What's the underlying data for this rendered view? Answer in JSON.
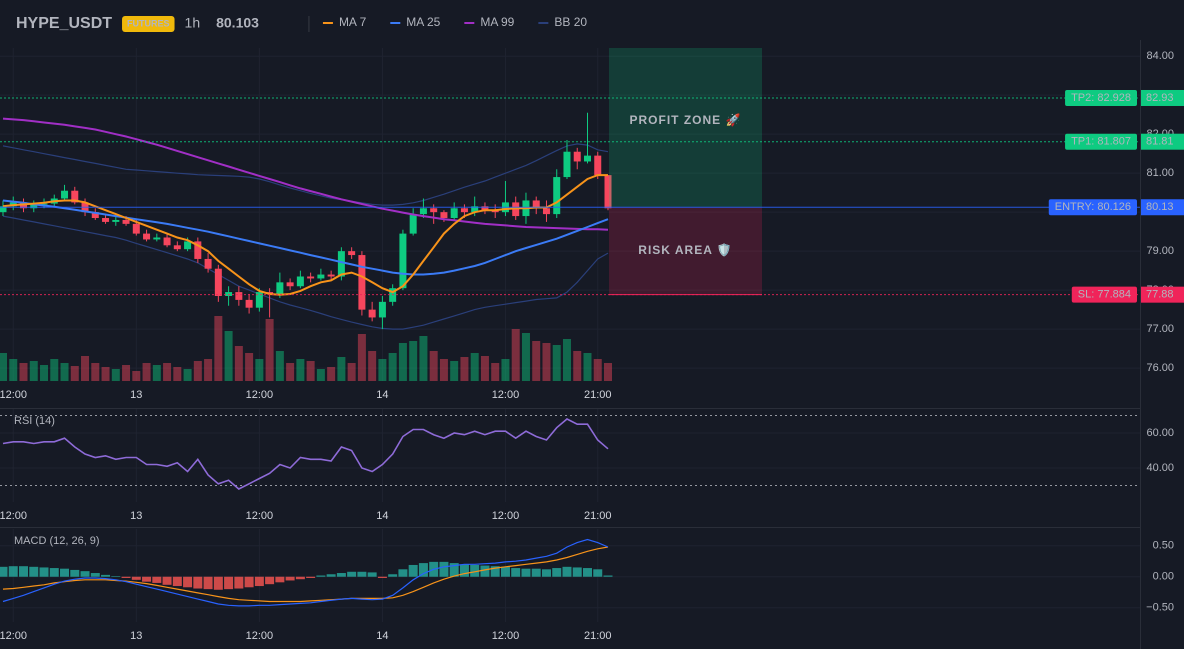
{
  "chart_data": [
    {
      "type": "candlestick",
      "title": "HYPE_USDT",
      "badge": "FUTURES",
      "interval": "1h",
      "last_price": 80.103,
      "last_price_color": "#f6465d",
      "categories": [
        null,
        "12:00",
        null,
        null,
        null,
        null,
        null,
        null,
        null,
        null,
        null,
        null,
        null,
        "13",
        null,
        null,
        null,
        null,
        null,
        null,
        null,
        null,
        null,
        null,
        null,
        "12:00",
        null,
        null,
        null,
        null,
        null,
        null,
        null,
        null,
        null,
        null,
        null,
        "14",
        null,
        null,
        null,
        null,
        null,
        null,
        null,
        null,
        null,
        null,
        null,
        "12:00",
        null,
        null,
        null,
        null,
        null,
        null,
        null,
        null,
        "21:00",
        null
      ],
      "open": [
        80.0,
        80.15,
        80.25,
        80.1,
        80.2,
        80.22,
        80.35,
        80.55,
        80.25,
        80.0,
        79.85,
        79.75,
        79.8,
        79.7,
        79.45,
        79.3,
        79.35,
        79.15,
        79.05,
        79.25,
        78.8,
        78.55,
        77.85,
        77.95,
        77.75,
        77.55,
        77.95,
        77.9,
        78.2,
        78.1,
        78.35,
        78.3,
        78.4,
        78.35,
        79.0,
        78.9,
        77.5,
        77.3,
        77.7,
        78.05,
        79.45,
        79.95,
        80.1,
        80.0,
        79.85,
        80.1,
        80.0,
        80.15,
        80.05,
        80.0,
        80.25,
        79.9,
        80.3,
        80.1,
        79.95,
        80.9,
        81.55,
        81.3,
        81.45,
        80.95
      ],
      "high": [
        80.3,
        80.4,
        80.35,
        80.3,
        80.35,
        80.45,
        80.7,
        80.65,
        80.35,
        80.1,
        79.95,
        79.9,
        79.9,
        79.8,
        79.55,
        79.45,
        79.45,
        79.25,
        79.35,
        79.35,
        78.95,
        78.65,
        78.1,
        78.1,
        77.9,
        78.05,
        78.05,
        78.45,
        78.3,
        78.5,
        78.45,
        78.55,
        78.5,
        79.1,
        79.1,
        79.0,
        77.7,
        77.85,
        78.15,
        79.55,
        80.1,
        80.35,
        80.2,
        80.05,
        80.25,
        80.2,
        80.4,
        80.25,
        80.2,
        80.8,
        80.4,
        80.5,
        80.4,
        80.3,
        81.1,
        81.85,
        81.65,
        82.55,
        81.55,
        80.95
      ],
      "low": [
        79.9,
        80.05,
        80.0,
        80.0,
        80.1,
        80.15,
        80.3,
        80.2,
        79.9,
        79.8,
        79.7,
        79.65,
        79.65,
        79.4,
        79.25,
        79.25,
        79.1,
        79.0,
        79.0,
        78.7,
        78.45,
        77.7,
        77.6,
        77.6,
        77.4,
        77.45,
        77.3,
        77.8,
        78.0,
        78.05,
        78.2,
        78.25,
        78.25,
        78.25,
        78.8,
        77.35,
        77.2,
        77.0,
        77.6,
        78.0,
        79.4,
        79.85,
        79.7,
        79.75,
        79.8,
        79.85,
        79.9,
        79.95,
        79.85,
        79.9,
        79.8,
        79.7,
        79.95,
        79.75,
        79.85,
        80.85,
        81.1,
        81.25,
        80.85,
        80.05
      ],
      "close": [
        80.15,
        80.25,
        80.1,
        80.2,
        80.22,
        80.35,
        80.55,
        80.25,
        80.0,
        79.85,
        79.75,
        79.8,
        79.7,
        79.45,
        79.3,
        79.35,
        79.15,
        79.05,
        79.25,
        78.8,
        78.55,
        77.85,
        77.95,
        77.75,
        77.55,
        77.95,
        77.9,
        78.2,
        78.1,
        78.35,
        78.3,
        78.4,
        78.35,
        79.0,
        78.9,
        77.5,
        77.3,
        77.7,
        78.05,
        79.45,
        79.95,
        80.1,
        80.0,
        79.85,
        80.1,
        80.0,
        80.15,
        80.05,
        80.0,
        80.25,
        79.9,
        80.3,
        80.1,
        79.95,
        80.9,
        81.55,
        81.3,
        81.45,
        80.95,
        80.1
      ],
      "volume": [
        28,
        22,
        18,
        20,
        16,
        22,
        18,
        15,
        25,
        18,
        14,
        12,
        16,
        10,
        18,
        16,
        18,
        14,
        12,
        20,
        22,
        65,
        50,
        35,
        28,
        22,
        62,
        30,
        18,
        22,
        20,
        12,
        14,
        24,
        18,
        47,
        30,
        22,
        28,
        38,
        40,
        45,
        30,
        22,
        20,
        24,
        28,
        25,
        18,
        22,
        52,
        48,
        40,
        38,
        36,
        42,
        30,
        28,
        22,
        18
      ],
      "volume_ylim": [
        0,
        100
      ],
      "up_color": "#0ecb81",
      "down_color": "#f6465d",
      "series": [
        {
          "name": "MA 7",
          "color": "#f7931a",
          "values": [
            80.15,
            80.18,
            80.2,
            80.22,
            80.24,
            80.28,
            80.3,
            80.3,
            80.25,
            80.15,
            80.05,
            79.95,
            79.85,
            79.75,
            79.65,
            79.55,
            79.45,
            79.35,
            79.28,
            79.15,
            79.0,
            78.75,
            78.55,
            78.35,
            78.15,
            77.98,
            77.9,
            77.88,
            77.9,
            77.98,
            78.1,
            78.2,
            78.25,
            78.4,
            78.45,
            78.35,
            78.2,
            78.05,
            77.95,
            78.1,
            78.4,
            78.75,
            79.1,
            79.45,
            79.7,
            79.9,
            80.0,
            80.05,
            80.05,
            80.08,
            80.1,
            80.1,
            80.12,
            80.12,
            80.25,
            80.45,
            80.65,
            80.85,
            80.95,
            80.95
          ]
        },
        {
          "name": "MA 25",
          "color": "#3b7bf6",
          "values": [
            80.3,
            80.27,
            80.24,
            80.2,
            80.17,
            80.14,
            80.1,
            80.06,
            80.02,
            79.98,
            79.94,
            79.9,
            79.86,
            79.82,
            79.78,
            79.74,
            79.7,
            79.65,
            79.6,
            79.55,
            79.5,
            79.44,
            79.38,
            79.32,
            79.26,
            79.2,
            79.14,
            79.08,
            79.02,
            78.96,
            78.9,
            78.84,
            78.78,
            78.72,
            78.66,
            78.6,
            78.55,
            78.5,
            78.45,
            78.42,
            78.4,
            78.4,
            78.42,
            78.45,
            78.5,
            78.56,
            78.62,
            78.7,
            78.8,
            78.9,
            79.0,
            79.08,
            79.16,
            79.24,
            79.32,
            79.42,
            79.52,
            79.62,
            79.72,
            79.82
          ]
        },
        {
          "name": "MA 99",
          "color": "#a12fc6",
          "values": [
            82.4,
            82.38,
            82.36,
            82.33,
            82.3,
            82.27,
            82.24,
            82.2,
            82.16,
            82.12,
            82.06,
            82.0,
            81.94,
            81.87,
            81.8,
            81.73,
            81.65,
            81.57,
            81.49,
            81.41,
            81.33,
            81.25,
            81.17,
            81.09,
            81.01,
            80.93,
            80.85,
            80.77,
            80.69,
            80.61,
            80.54,
            80.47,
            80.4,
            80.33,
            80.27,
            80.21,
            80.15,
            80.09,
            80.04,
            79.99,
            79.94,
            79.9,
            79.86,
            79.82,
            79.79,
            79.76,
            79.73,
            79.7,
            79.68,
            79.66,
            79.64,
            79.62,
            79.61,
            79.6,
            79.59,
            79.58,
            79.57,
            79.56,
            79.56,
            79.55
          ]
        },
        {
          "name": "BB 20",
          "color": "#2a3f7a",
          "upper": [
            81.7,
            81.65,
            81.6,
            81.55,
            81.5,
            81.45,
            81.4,
            81.35,
            81.3,
            81.25,
            81.2,
            81.15,
            81.1,
            81.08,
            81.06,
            81.04,
            81.02,
            81.0,
            80.98,
            80.96,
            80.95,
            80.94,
            80.93,
            80.92,
            80.9,
            80.85,
            80.78,
            80.7,
            80.62,
            80.55,
            80.48,
            80.42,
            80.36,
            80.32,
            80.28,
            80.24,
            80.2,
            80.18,
            80.18,
            80.2,
            80.24,
            80.3,
            80.38,
            80.46,
            80.55,
            80.64,
            80.72,
            80.8,
            80.9,
            81.0,
            81.1,
            81.2,
            81.32,
            81.45,
            81.58,
            81.7,
            81.75,
            81.72,
            81.6,
            81.55
          ],
          "lower": [
            79.9,
            79.85,
            79.8,
            79.75,
            79.7,
            79.65,
            79.6,
            79.55,
            79.5,
            79.45,
            79.4,
            79.35,
            79.28,
            79.2,
            79.12,
            79.04,
            78.96,
            78.88,
            78.8,
            78.7,
            78.55,
            78.4,
            78.25,
            78.1,
            78.0,
            77.9,
            77.8,
            77.7,
            77.62,
            77.55,
            77.48,
            77.4,
            77.32,
            77.25,
            77.18,
            77.12,
            77.06,
            77.02,
            77.0,
            77.0,
            77.05,
            77.1,
            77.18,
            77.26,
            77.34,
            77.42,
            77.5,
            77.56,
            77.6,
            77.64,
            77.68,
            77.72,
            77.76,
            77.78,
            77.8,
            77.95,
            78.2,
            78.5,
            78.8,
            78.95
          ]
        }
      ],
      "ylim": [
        75.67,
        84.21
      ],
      "yticks": [
        {
          "value": 84,
          "label": "84.00"
        },
        {
          "value": 83,
          "label": "83.00"
        },
        {
          "value": 82,
          "label": "82.00"
        },
        {
          "value": 81,
          "label": "81.00"
        },
        {
          "value": 80,
          "label": "80.00"
        },
        {
          "value": 79,
          "label": "79.00"
        },
        {
          "value": 78,
          "label": "78.00"
        },
        {
          "value": 77,
          "label": "77.00"
        },
        {
          "value": 76,
          "label": "76.00"
        }
      ],
      "levels": {
        "tp2": {
          "value": 82.928,
          "label": "TP2: 82.928",
          "axis_label": "82.93",
          "color": "#0ecb81",
          "text_color": "#0b0e11",
          "style": "dotted"
        },
        "tp1": {
          "value": 81.807,
          "label": "TP1: 81.807",
          "axis_label": "81.81",
          "color": "#0ecb81",
          "text_color": "#0b0e11",
          "style": "dotted"
        },
        "entry": {
          "value": 80.126,
          "label": "ENTRY: 80.126",
          "axis_label": "80.13",
          "color": "#2962ff",
          "text_color": "#ffffff",
          "style": "solid"
        },
        "sl": {
          "value": 77.884,
          "label": "SL: 77.884",
          "axis_label": "77.88",
          "color": "#f0245a",
          "text_color": "#ffffff",
          "style": "dotted"
        }
      },
      "profit_zone": {
        "label": "PROFIT ZONE 🚀",
        "color": "#0ecb81"
      },
      "risk_zone": {
        "label": "RISK AREA 🛡️",
        "color": "#f0245a"
      }
    },
    {
      "type": "line",
      "title": "RSI (14)",
      "color": "#8e6bd8",
      "categories": [
        null,
        "12:00",
        null,
        null,
        null,
        null,
        null,
        null,
        null,
        null,
        null,
        null,
        null,
        "13",
        null,
        null,
        null,
        null,
        null,
        null,
        null,
        null,
        null,
        null,
        null,
        "12:00",
        null,
        null,
        null,
        null,
        null,
        null,
        null,
        null,
        null,
        null,
        null,
        "14",
        null,
        null,
        null,
        null,
        null,
        null,
        null,
        null,
        null,
        null,
        null,
        "12:00",
        null,
        null,
        null,
        null,
        null,
        null,
        null,
        null,
        "21:00",
        null
      ],
      "values": [
        54,
        55,
        55,
        54,
        55,
        55,
        57,
        52,
        48,
        46,
        47,
        45,
        46,
        46,
        42,
        42,
        41,
        43,
        38,
        45,
        36,
        31,
        33,
        28,
        31,
        34,
        37,
        42,
        40,
        46,
        45,
        45,
        44,
        52,
        50,
        40,
        38,
        42,
        48,
        58,
        62,
        62,
        59,
        57,
        60,
        59,
        61,
        59,
        61,
        61,
        57,
        61,
        58,
        56,
        63,
        68,
        65,
        65,
        56,
        51
      ],
      "ylim": [
        20.6,
        73.7
      ],
      "yticks": [
        {
          "value": 60,
          "label": "60.00"
        },
        {
          "value": 40,
          "label": "40.00"
        }
      ],
      "levels": [
        70,
        30
      ]
    },
    {
      "type": "macd",
      "title": "MACD (12, 26, 9)",
      "macd_color": "#2962ff",
      "signal_color": "#f7931a",
      "histogram_colors": [
        "#26a69a",
        "#ef5350"
      ],
      "categories": [
        null,
        "12:00",
        null,
        null,
        null,
        null,
        null,
        null,
        null,
        null,
        null,
        null,
        null,
        "13",
        null,
        null,
        null,
        null,
        null,
        null,
        null,
        null,
        null,
        null,
        null,
        "12:00",
        null,
        null,
        null,
        null,
        null,
        null,
        null,
        null,
        null,
        null,
        null,
        "14",
        null,
        null,
        null,
        null,
        null,
        null,
        null,
        null,
        null,
        null,
        null,
        "12:00",
        null,
        null,
        null,
        null,
        null,
        null,
        null,
        null,
        "21:00",
        null
      ],
      "macd": [
        -0.4,
        -0.35,
        -0.3,
        -0.24,
        -0.18,
        -0.12,
        -0.07,
        -0.04,
        -0.02,
        -0.02,
        -0.03,
        -0.05,
        -0.08,
        -0.12,
        -0.16,
        -0.2,
        -0.24,
        -0.28,
        -0.32,
        -0.36,
        -0.4,
        -0.44,
        -0.46,
        -0.47,
        -0.47,
        -0.46,
        -0.46,
        -0.45,
        -0.44,
        -0.43,
        -0.42,
        -0.4,
        -0.38,
        -0.36,
        -0.35,
        -0.36,
        -0.37,
        -0.36,
        -0.3,
        -0.18,
        -0.05,
        0.05,
        0.12,
        0.16,
        0.18,
        0.2,
        0.2,
        0.21,
        0.22,
        0.24,
        0.25,
        0.27,
        0.3,
        0.33,
        0.38,
        0.48,
        0.55,
        0.6,
        0.55,
        0.48
      ],
      "signal": [
        -0.2,
        -0.19,
        -0.17,
        -0.15,
        -0.13,
        -0.1,
        -0.08,
        -0.06,
        -0.05,
        -0.05,
        -0.05,
        -0.06,
        -0.07,
        -0.09,
        -0.11,
        -0.14,
        -0.17,
        -0.2,
        -0.23,
        -0.26,
        -0.29,
        -0.32,
        -0.35,
        -0.37,
        -0.38,
        -0.39,
        -0.4,
        -0.4,
        -0.4,
        -0.4,
        -0.39,
        -0.38,
        -0.37,
        -0.36,
        -0.35,
        -0.35,
        -0.35,
        -0.35,
        -0.34,
        -0.3,
        -0.24,
        -0.17,
        -0.1,
        -0.04,
        0.01,
        0.05,
        0.08,
        0.11,
        0.14,
        0.16,
        0.18,
        0.2,
        0.22,
        0.24,
        0.27,
        0.31,
        0.36,
        0.41,
        0.45,
        0.48
      ],
      "histogram": [
        0.16,
        0.17,
        0.17,
        0.16,
        0.15,
        0.14,
        0.13,
        0.11,
        0.09,
        0.06,
        0.03,
        0.01,
        -0.02,
        -0.05,
        -0.08,
        -0.1,
        -0.13,
        -0.15,
        -0.17,
        -0.19,
        -0.2,
        -0.21,
        -0.2,
        -0.19,
        -0.17,
        -0.15,
        -0.12,
        -0.09,
        -0.06,
        -0.04,
        -0.02,
        0.02,
        0.04,
        0.06,
        0.08,
        0.08,
        0.07,
        -0.02,
        0.04,
        0.12,
        0.19,
        0.22,
        0.24,
        0.24,
        0.22,
        0.2,
        0.19,
        0.18,
        0.17,
        0.16,
        0.14,
        0.13,
        0.13,
        0.12,
        0.14,
        0.16,
        0.15,
        0.14,
        0.12,
        0.02
      ],
      "ylim": [
        -0.73,
        0.77
      ],
      "yticks": [
        {
          "value": 0.5,
          "label": "0.50"
        },
        {
          "value": 0,
          "label": "0.00"
        },
        {
          "value": -0.5,
          "label": "−0.50"
        }
      ]
    }
  ]
}
